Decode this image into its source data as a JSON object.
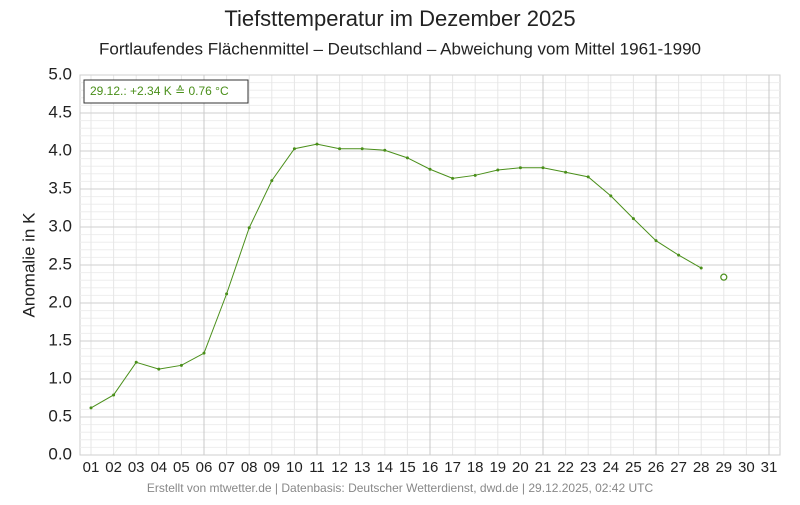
{
  "chart_data": {
    "type": "line",
    "title": "Tiefsttemperatur im Dezember 2025",
    "subtitle": "Fortlaufendes Flächenmittel – Deutschland – Abweichung vom Mittel 1961-1990",
    "y_label": "Anomalie in K",
    "annotation": "29.12.: +2.34 K ≙ 0.76 °C",
    "footer": "Erstellt von mtwetter.de | Datenbasis: Deutscher Wetterdienst, dwd.de | 29.12.2025, 02:42 UTC",
    "categories": [
      "01",
      "02",
      "03",
      "04",
      "05",
      "06",
      "07",
      "08",
      "09",
      "10",
      "11",
      "12",
      "13",
      "14",
      "15",
      "16",
      "17",
      "18",
      "19",
      "20",
      "21",
      "22",
      "23",
      "24",
      "25",
      "26",
      "27",
      "28",
      "29",
      "30",
      "31"
    ],
    "series": [
      {
        "color": "#4a8f1a",
        "values": [
          0.62,
          0.79,
          1.22,
          1.13,
          1.18,
          1.34,
          2.12,
          2.99,
          3.61,
          4.03,
          4.09,
          4.03,
          4.03,
          4.01,
          3.91,
          3.76,
          3.64,
          3.68,
          3.75,
          3.78,
          3.78,
          3.72,
          3.66,
          3.41,
          3.11,
          2.82,
          2.63,
          2.46,
          null,
          null,
          null
        ]
      },
      {
        "color": "#4a8f1a",
        "marker": "open",
        "values": [
          null,
          null,
          null,
          null,
          null,
          null,
          null,
          null,
          null,
          null,
          null,
          null,
          null,
          null,
          null,
          null,
          null,
          null,
          null,
          null,
          null,
          null,
          null,
          null,
          null,
          null,
          null,
          null,
          2.34,
          null,
          null
        ]
      }
    ],
    "ylim": [
      0,
      5
    ],
    "yticks": [
      {
        "value": 0,
        "label": "0.0"
      },
      0.5,
      {
        "value": 1,
        "label": "1.0"
      },
      1.5,
      {
        "value": 2,
        "label": "2.0"
      },
      2.5,
      {
        "value": 3,
        "label": "3.0"
      },
      3.5,
      {
        "value": 4,
        "label": "4.0"
      },
      4.5,
      {
        "value": 5,
        "label": "5.0"
      }
    ],
    "grid": true
  }
}
